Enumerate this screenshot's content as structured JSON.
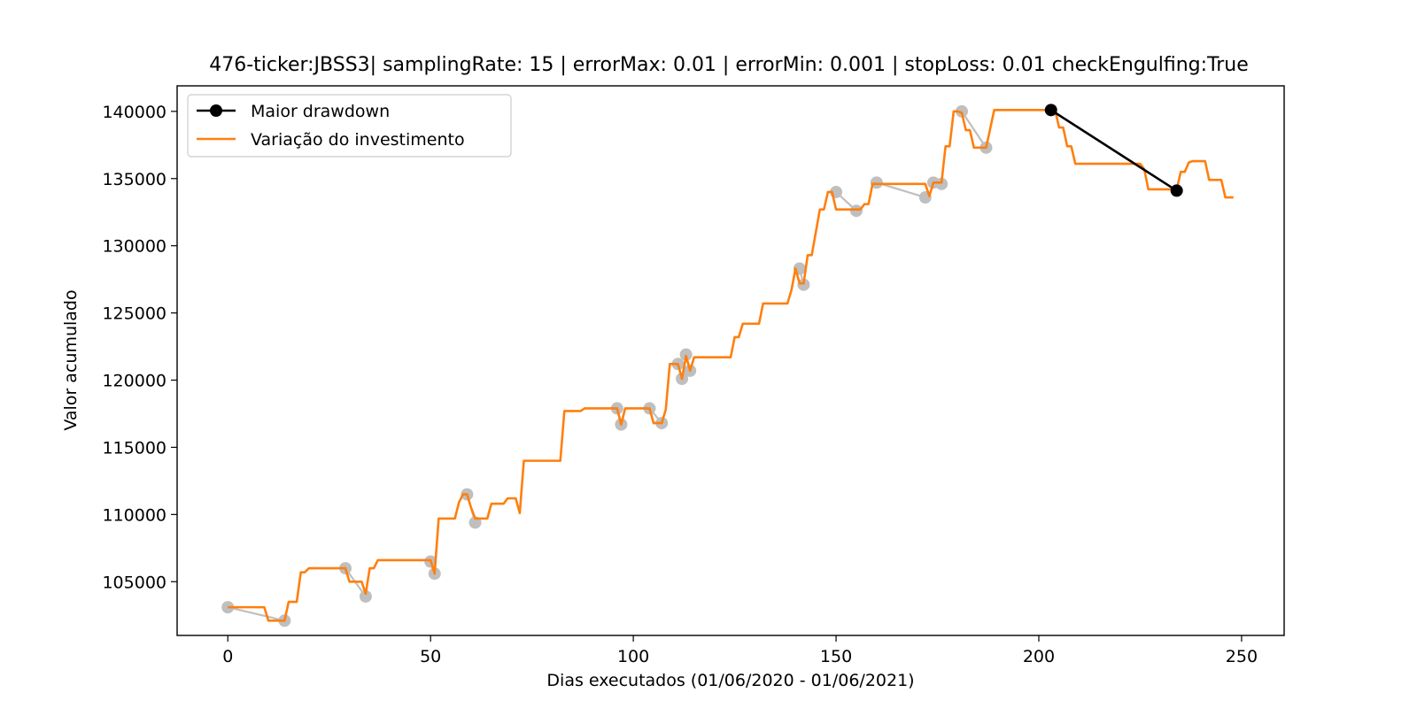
{
  "chart_data": {
    "type": "line",
    "title": "476-ticker:JBSS3| samplingRate: 15 | errorMax: 0.01 | errorMin: 0.001 | stopLoss: 0.01 checkEngulfing:True",
    "xlabel": "Dias executados (01/06/2020 - 01/06/2021)",
    "ylabel": "Valor acumulado",
    "xlim": [
      -12.5,
      260.5
    ],
    "ylim": [
      101000,
      141900
    ],
    "x_ticks": [
      0,
      50,
      100,
      150,
      200,
      250
    ],
    "y_ticks": [
      105000,
      110000,
      115000,
      120000,
      125000,
      130000,
      135000,
      140000
    ],
    "grid": false,
    "legend_position": "upper left",
    "colors": {
      "drawdown": "#000000",
      "investment": "#ff7f0e",
      "markers": "#bfbfbf"
    },
    "series": [
      {
        "name": "Maior drawdown",
        "style": "line-with-markers",
        "x": [
          203,
          234
        ],
        "y": [
          140100,
          134100
        ]
      },
      {
        "name": "Variação do investimento",
        "style": "line",
        "x": [
          0,
          9,
          10,
          13,
          14,
          15,
          16,
          17,
          18,
          19,
          20,
          21,
          22,
          28,
          29,
          30,
          31,
          32,
          33,
          34,
          35,
          36,
          37,
          38,
          50,
          51,
          52,
          56,
          57,
          58,
          59,
          60,
          61,
          62,
          64,
          65,
          68,
          69,
          70,
          71,
          72,
          73,
          74,
          82,
          83,
          84,
          87,
          88,
          95,
          96,
          97,
          98,
          103,
          104,
          105,
          106,
          107,
          108,
          109,
          110,
          111,
          112,
          113,
          114,
          115,
          124,
          125,
          126,
          127,
          128,
          131,
          132,
          138,
          139,
          140,
          141,
          142,
          143,
          144,
          146,
          147,
          148,
          149,
          150,
          151,
          152,
          155,
          156,
          157,
          158,
          159,
          160,
          172,
          173,
          174,
          175,
          176,
          177,
          178,
          179,
          180,
          181,
          182,
          183,
          184,
          185,
          186,
          187,
          188,
          189,
          190,
          203,
          204,
          205,
          206,
          207,
          208,
          209,
          210,
          225,
          226,
          227,
          228,
          234,
          235,
          236,
          237,
          238,
          241,
          242,
          243,
          245,
          246,
          248
        ],
        "y": [
          103100,
          103100,
          102100,
          102100,
          102100,
          103500,
          103500,
          103500,
          105700,
          105700,
          106000,
          106000,
          106000,
          106000,
          106000,
          105000,
          105000,
          105000,
          105000,
          104100,
          106000,
          106000,
          106600,
          106600,
          106600,
          105600,
          109700,
          109700,
          110900,
          111500,
          111500,
          110500,
          109700,
          109700,
          109700,
          110800,
          110800,
          111200,
          111200,
          111200,
          110100,
          114000,
          114000,
          114000,
          117700,
          117700,
          117700,
          117900,
          117900,
          117900,
          116700,
          117900,
          117900,
          117900,
          116800,
          116800,
          116800,
          117800,
          121200,
          121200,
          121200,
          120100,
          121800,
          120700,
          121700,
          121700,
          123200,
          123200,
          124200,
          124200,
          124200,
          125700,
          125700,
          126700,
          128300,
          127200,
          127200,
          129300,
          129300,
          132700,
          132700,
          134000,
          134000,
          132700,
          132700,
          132700,
          132700,
          132700,
          133100,
          133100,
          134600,
          134600,
          134600,
          133700,
          134700,
          134700,
          134700,
          137400,
          137400,
          140000,
          140000,
          139900,
          138600,
          138600,
          137300,
          137300,
          137300,
          137300,
          138700,
          140100,
          140100,
          140100,
          140100,
          138800,
          138800,
          137400,
          137400,
          136100,
          136100,
          136100,
          135700,
          134200,
          134200,
          134200,
          135500,
          135500,
          136200,
          136300,
          136300,
          134900,
          134900,
          134900,
          133600,
          133600
        ]
      }
    ],
    "highlight_points": {
      "x": [
        0,
        14,
        29,
        34,
        50,
        51,
        59,
        61,
        96,
        97,
        104,
        107,
        111,
        112,
        113,
        114,
        141,
        142,
        150,
        155,
        160,
        172,
        174,
        176,
        181,
        187
      ],
      "y": [
        103100,
        102100,
        106000,
        103900,
        106500,
        105600,
        111500,
        109400,
        117900,
        116700,
        117900,
        116800,
        121200,
        120100,
        121900,
        120700,
        128300,
        127100,
        134000,
        132600,
        134700,
        133600,
        134700,
        134600,
        140000,
        137300
      ]
    },
    "legend": {
      "entries": [
        "Maior drawdown",
        "Variação do investimento"
      ]
    }
  }
}
